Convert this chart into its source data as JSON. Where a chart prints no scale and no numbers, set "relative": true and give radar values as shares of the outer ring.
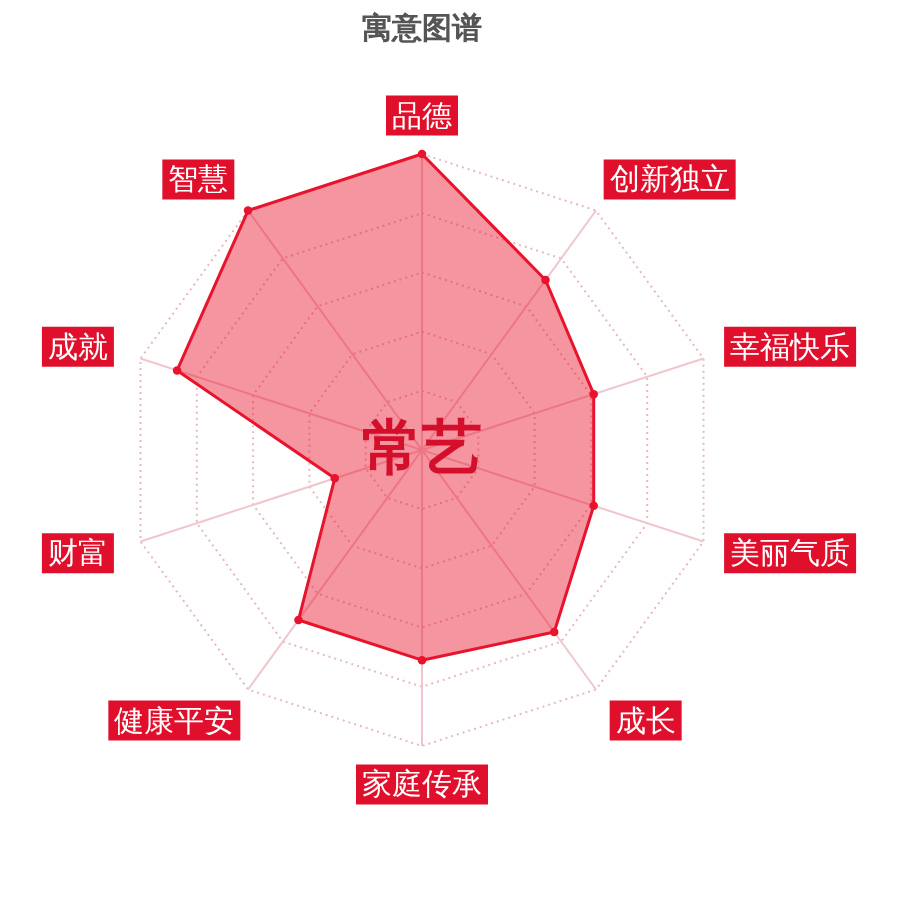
{
  "chart_data": {
    "type": "radar",
    "title": "寓意图谱",
    "relative": true,
    "grid": true,
    "marker": "circle",
    "categories": [
      "品德",
      "创新独立",
      "幸福快乐",
      "美丽气质",
      "成长",
      "家庭传承",
      "健康平安",
      "财富",
      "成就",
      "智慧"
    ],
    "series": [
      {
        "color": "#e8132d",
        "values": [
          1.0,
          0.71,
          0.61,
          0.61,
          0.76,
          0.71,
          0.71,
          0.31,
          0.87,
          1.0
        ]
      }
    ],
    "annotations": [
      "常艺"
    ]
  }
}
